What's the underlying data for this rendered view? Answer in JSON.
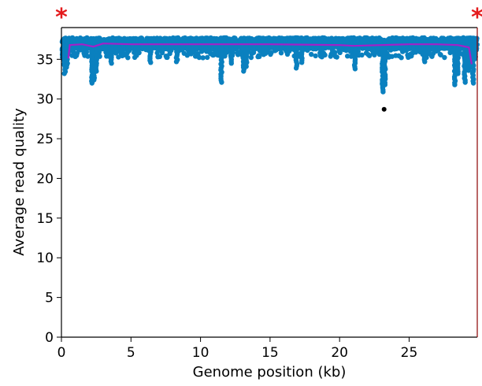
{
  "chart_data": {
    "type": "scatter",
    "title": "",
    "xlabel": "Genome position (kb)",
    "ylabel": "Average read quality",
    "xlim": [
      0,
      29.9
    ],
    "ylim": [
      0,
      39
    ],
    "xticks": [
      0,
      5,
      10,
      15,
      20,
      25
    ],
    "yticks": [
      0,
      5,
      10,
      15,
      20,
      25,
      30,
      35
    ],
    "grid": false,
    "colors": {
      "points": "#0a80bf",
      "outlier": "#000000",
      "trend": "#a51fc8",
      "marker": "#e41a1c",
      "right_spine": "#8b0000"
    },
    "band": {
      "x_start": 0.05,
      "x_end": 29.85,
      "y_low": 36.3,
      "y_high": 37.7
    },
    "dips": [
      {
        "x": 0.25,
        "min": 33.2
      },
      {
        "x": 0.4,
        "min": 34.0
      },
      {
        "x": 2.2,
        "min": 32.0
      },
      {
        "x": 2.35,
        "min": 32.4
      },
      {
        "x": 2.5,
        "min": 33.5
      },
      {
        "x": 3.6,
        "min": 34.5
      },
      {
        "x": 6.4,
        "min": 34.6
      },
      {
        "x": 8.3,
        "min": 34.7
      },
      {
        "x": 11.5,
        "min": 32.1
      },
      {
        "x": 12.2,
        "min": 34.5
      },
      {
        "x": 13.1,
        "min": 33.5
      },
      {
        "x": 13.3,
        "min": 34.1
      },
      {
        "x": 16.9,
        "min": 33.9
      },
      {
        "x": 17.3,
        "min": 34.6
      },
      {
        "x": 21.1,
        "min": 33.8
      },
      {
        "x": 23.1,
        "min": 30.9
      },
      {
        "x": 23.25,
        "min": 31.8
      },
      {
        "x": 26.1,
        "min": 34.7
      },
      {
        "x": 28.3,
        "min": 31.8
      },
      {
        "x": 28.5,
        "min": 33.2
      },
      {
        "x": 29.0,
        "min": 32.1
      },
      {
        "x": 29.3,
        "min": 33.6
      },
      {
        "x": 29.6,
        "min": 32.0
      }
    ],
    "outliers": [
      {
        "x": 23.2,
        "y": 28.7
      }
    ],
    "trend": {
      "x": [
        0.5,
        0.6,
        1.5,
        2.3,
        3.0,
        5.0,
        10.0,
        15.0,
        20.0,
        21.0,
        25.0,
        27.0,
        28.5,
        29.3,
        29.5
      ],
      "y": [
        35.1,
        36.8,
        36.9,
        36.6,
        37.0,
        36.9,
        36.9,
        36.9,
        36.8,
        36.7,
        36.9,
        36.9,
        36.8,
        36.5,
        34.4
      ]
    },
    "markers": [
      {
        "x": 0,
        "label": "*"
      },
      {
        "x": 29.9,
        "label": "*"
      }
    ]
  }
}
